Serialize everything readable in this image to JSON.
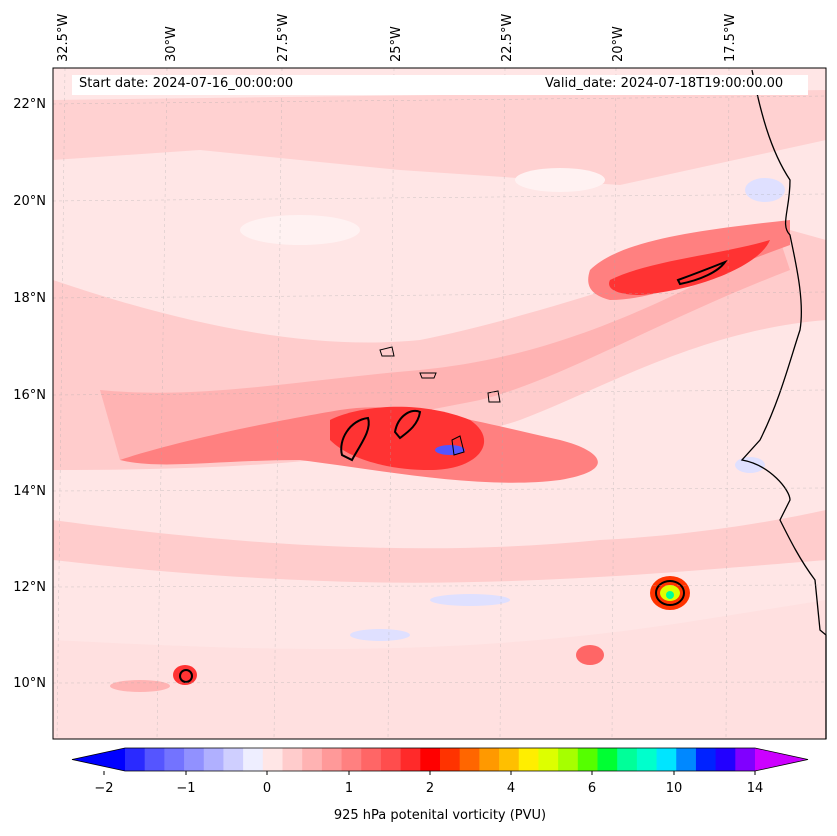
{
  "map": {
    "start_date": "Start date: 2024-07-16_00:00:00",
    "valid_date": "Valid_date: 2024-07-18T19:00:00.00",
    "lon_labels": [
      "32.5°W",
      "30°W",
      "27.5°W",
      "25°W",
      "22.5°W",
      "20°W",
      "17.5°W"
    ],
    "lat_labels": [
      "22°N",
      "20°N",
      "18°N",
      "16°N",
      "14°N",
      "12°N",
      "10°N"
    ]
  },
  "colorbar": {
    "title": "925 hPa potenital vorticity (PVU)",
    "tick_labels": [
      "−2",
      "−1",
      "0",
      "1",
      "2",
      "4",
      "6",
      "10",
      "14"
    ],
    "colors": [
      "#0000ff",
      "#2a2aff",
      "#5555ff",
      "#7373ff",
      "#9191ff",
      "#b0b0ff",
      "#cfcfff",
      "#eeeeff",
      "#ffe6e6",
      "#ffcccc",
      "#ffb3b3",
      "#ff9999",
      "#ff8080",
      "#ff6666",
      "#ff4d4d",
      "#ff2a2a",
      "#ff0000",
      "#ff3300",
      "#ff6600",
      "#ff9900",
      "#ffbf00",
      "#ffee00",
      "#ddff00",
      "#a6ff00",
      "#55ff00",
      "#00ff33",
      "#00ff99",
      "#00ffcc",
      "#00e5ff",
      "#0088ff",
      "#0022ff",
      "#2200ff",
      "#8000ff",
      "#cc00ff"
    ]
  },
  "palette": {
    "background": "#ffe6e6",
    "light_pink": "#ffcccc",
    "pink": "#ffb3b3",
    "mid_red": "#ff8080",
    "red": "#ff3333",
    "white_patch": "#fff2f2",
    "blue_patch": "#dfe0ff",
    "coast": "#000000"
  }
}
